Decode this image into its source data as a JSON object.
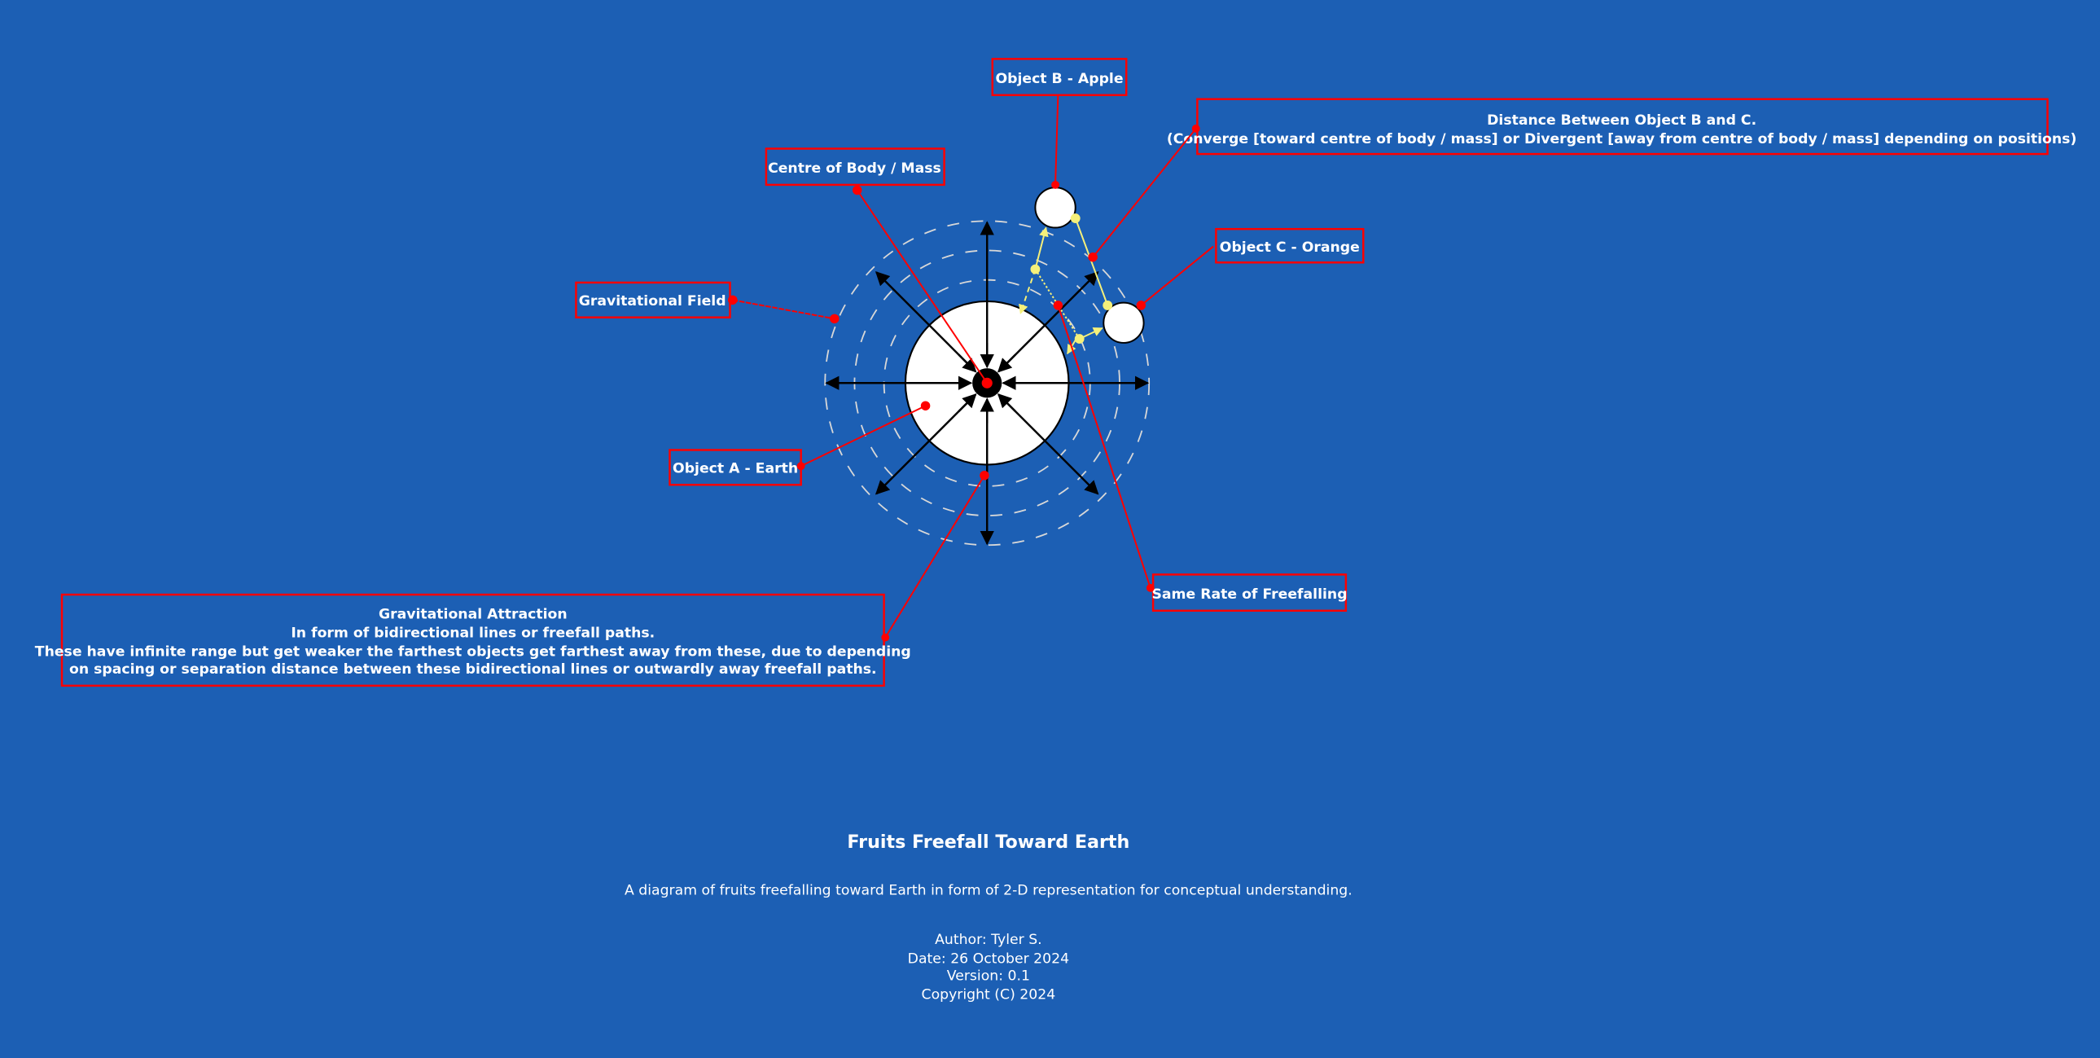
{
  "colors": {
    "background": "#1c5fb4",
    "callout": "#ff0000",
    "motion": "#f5f07a",
    "body": "#ffffff",
    "arrow": "#000000"
  },
  "labels": {
    "object_b": "Object B - Apple",
    "distance_title": "Distance Between Object B and C.",
    "distance_note": "(Converge [toward centre of body / mass] or Divergent [away from centre of body / mass] depending on positions)",
    "centre": "Centre of Body / Mass",
    "object_c": "Object C - Orange",
    "field": "Gravitational Field",
    "object_a": "Object A - Earth",
    "same_rate": "Same Rate of Freefalling",
    "attraction_lines": [
      "Gravitational Attraction",
      "In form of bidirectional lines or freefall paths.",
      "These have infinite range but get weaker the farthest objects get farthest away from these, due to depending",
      "on spacing or separation distance between these  bidirectional lines or outwardly away freefall paths."
    ]
  },
  "footer": {
    "title": "Fruits Freefall Toward Earth",
    "subtitle": "A diagram of fruits freefalling toward Earth in form of 2-D representation for conceptual understanding.",
    "author": "Author: Tyler S.",
    "date": "Date: 26 October 2024",
    "version": "Version: 0.1",
    "copyright": "Copyright (C) 2024"
  }
}
